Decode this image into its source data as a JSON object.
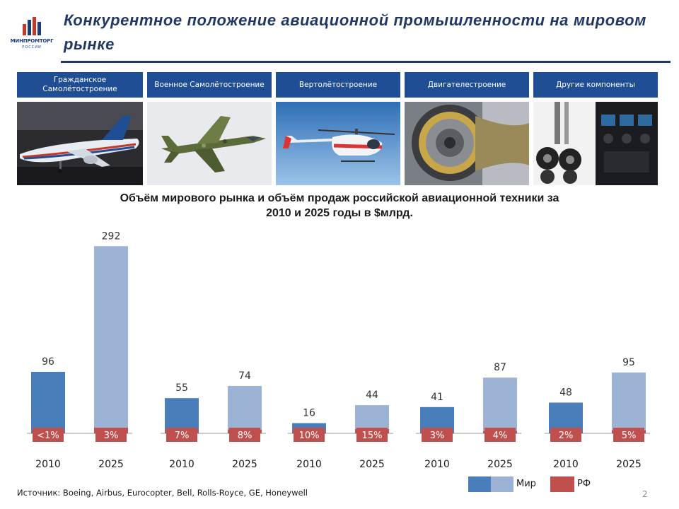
{
  "header": {
    "logo_text": "МИНПРОМТОРГ",
    "logo_subtext": "РОССИИ",
    "title": "Конкурентное положение авиационной промышленности на мировом рынке"
  },
  "segments": [
    {
      "label": "Гражданское Самолётостроение",
      "image": "passenger-jet-photo"
    },
    {
      "label": "Военное Самолётостроение",
      "image": "fighter-jet-photo"
    },
    {
      "label": "Вертолётостроение",
      "image": "helicopter-photo"
    },
    {
      "label": "Двигателестроение",
      "image": "jet-engine-photo"
    },
    {
      "label": "Другие компоненты",
      "image": "landing-gear-and-cockpit-photo"
    }
  ],
  "colors": {
    "brand_blue": "#1f4e94",
    "world_2010": "#4a7ebb",
    "world_2025": "#9db3d6",
    "russia": "#c0504d"
  },
  "chart_data": {
    "type": "bar",
    "title": "Объём мирового рынка и объём продаж российской авиационной техники за 2010 и 2025 годы в $млрд.",
    "ylim": [
      0,
      300
    ],
    "grid": false,
    "legend_position": "bottom-right",
    "series": [
      {
        "name": "Мир"
      },
      {
        "name": "РФ"
      }
    ],
    "groups": [
      {
        "bars": [
          {
            "year": "2010",
            "world": 96,
            "world_label": "96",
            "russia_share_label": "<1%",
            "russia_share": 0.5
          },
          {
            "year": "2025",
            "world": 292,
            "world_label": "292",
            "russia_share_label": "3%",
            "russia_share": 3
          }
        ]
      },
      {
        "bars": [
          {
            "year": "2010",
            "world": 55,
            "world_label": "55",
            "russia_share_label": "7%",
            "russia_share": 7
          },
          {
            "year": "2025",
            "world": 74,
            "world_label": "74",
            "russia_share_label": "8%",
            "russia_share": 8
          }
        ]
      },
      {
        "bars": [
          {
            "year": "2010",
            "world": 16,
            "world_label": "16",
            "russia_share_label": "10%",
            "russia_share": 10
          },
          {
            "year": "2025",
            "world": 44,
            "world_label": "44",
            "russia_share_label": "15%",
            "russia_share": 15
          }
        ]
      },
      {
        "bars": [
          {
            "year": "2010",
            "world": 41,
            "world_label": "41",
            "russia_share_label": "3%",
            "russia_share": 3
          },
          {
            "year": "2025",
            "world": 87,
            "world_label": "87",
            "russia_share_label": "4%",
            "russia_share": 4
          }
        ]
      },
      {
        "bars": [
          {
            "year": "2010",
            "world": 48,
            "world_label": "48",
            "russia_share_label": "2%",
            "russia_share": 2
          },
          {
            "year": "2025",
            "world": 95,
            "world_label": "95",
            "russia_share_label": "5%",
            "russia_share": 5
          }
        ]
      }
    ]
  },
  "footer": {
    "source": "Источник: Boeing, Airbus, Eurocopter, Bell, Rolls-Royce, GE, Honeywell",
    "page_number": "2"
  }
}
